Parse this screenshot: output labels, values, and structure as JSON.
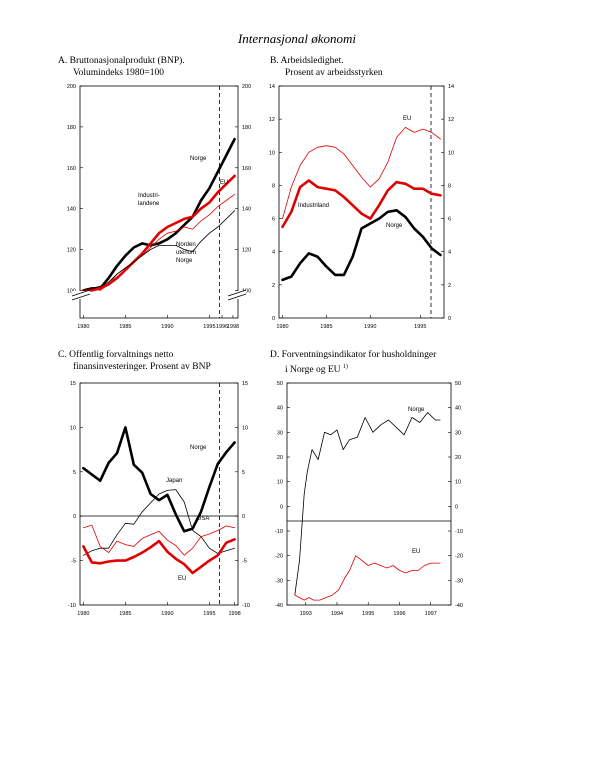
{
  "page": {
    "title": "Internasjonal økonomi"
  },
  "chart_data": [
    {
      "id": "A",
      "type": "line",
      "title_line1": "A.  Bruttonasjonalprodukt (BNP).",
      "title_line2": "Volumindeks 1980=100",
      "x_ticks": [
        "1980",
        "1985",
        "1990",
        "1995",
        "1996",
        "1998"
      ],
      "y_ticks": [
        "100",
        "120",
        "140",
        "160",
        "180",
        "200"
      ],
      "ylim": [
        100,
        200
      ],
      "forecast_from": 1996,
      "series": [
        {
          "name": "Norge",
          "color": "#000000",
          "width": 2.6,
          "x": [
            1980,
            1981,
            1982,
            1983,
            1984,
            1985,
            1986,
            1987,
            1988,
            1989,
            1990,
            1991,
            1992,
            1993,
            1994,
            1995,
            1996,
            1997,
            1998
          ],
          "y": [
            100,
            101,
            101,
            106,
            112,
            117,
            121,
            123,
            122,
            123,
            125,
            128,
            132,
            136,
            144,
            150,
            158,
            166,
            174
          ]
        },
        {
          "name": "EU",
          "color": "#e00000",
          "width": 2.6,
          "x": [
            1980,
            1981,
            1982,
            1983,
            1984,
            1985,
            1986,
            1987,
            1988,
            1989,
            1990,
            1991,
            1992,
            1993,
            1994,
            1995,
            1996,
            1997,
            1998
          ],
          "y": [
            100,
            100,
            101,
            103,
            106,
            110,
            114,
            118,
            123,
            128,
            131,
            133,
            135,
            136,
            140,
            143,
            148,
            152,
            156
          ]
        },
        {
          "name": "Industri-landene",
          "color": "#e00000",
          "width": 0.8,
          "x": [
            1980,
            1981,
            1982,
            1983,
            1984,
            1985,
            1986,
            1987,
            1988,
            1989,
            1990,
            1991,
            1992,
            1993,
            1994,
            1995,
            1996,
            1997,
            1998
          ],
          "y": [
            100,
            101,
            100,
            103,
            108,
            111,
            114,
            117,
            121,
            125,
            128,
            129,
            131,
            130,
            134,
            137,
            141,
            144,
            147
          ]
        },
        {
          "name": "Norden utenom Norge",
          "color": "#000000",
          "width": 0.8,
          "x": [
            1980,
            1981,
            1982,
            1983,
            1984,
            1985,
            1986,
            1987,
            1988,
            1989,
            1990,
            1991,
            1992,
            1993,
            1994,
            1995,
            1996,
            1997,
            1998
          ],
          "y": [
            100,
            101,
            102,
            104,
            108,
            111,
            114,
            117,
            120,
            122,
            122,
            122,
            120,
            119,
            124,
            128,
            131,
            135,
            139
          ]
        }
      ],
      "labels": {
        "Norge": "Norge",
        "EU": "EU",
        "Industri1": "Industri-",
        "Industri2": "landene",
        "Norden1": "Norden",
        "Norden2": "utenom",
        "Norden3": "Norge"
      }
    },
    {
      "id": "B",
      "type": "line",
      "title_line1": "B.  Arbeidsledighet.",
      "title_line2": "Prosent av arbeidsstyrken",
      "x_ticks": [
        "1980",
        "1985",
        "1990",
        "1995"
      ],
      "y_ticks": [
        "0",
        "2",
        "4",
        "6",
        "8",
        "10",
        "12",
        "14"
      ],
      "ylim": [
        0,
        14
      ],
      "forecast_from": 1996,
      "series": [
        {
          "name": "EU",
          "color": "#e00000",
          "width": 0.8,
          "x": [
            1980,
            1981,
            1982,
            1983,
            1984,
            1985,
            1986,
            1987,
            1988,
            1989,
            1990,
            1991,
            1992,
            1993,
            1994,
            1995,
            1996,
            1997,
            1998
          ],
          "y": [
            6.0,
            7.9,
            9.2,
            10.0,
            10.3,
            10.4,
            10.3,
            9.9,
            9.2,
            8.5,
            7.9,
            8.4,
            9.4,
            10.9,
            11.5,
            11.2,
            11.4,
            11.2,
            10.8
          ]
        },
        {
          "name": "Industriland",
          "color": "#e00000",
          "width": 2.6,
          "x": [
            1980,
            1981,
            1982,
            1983,
            1984,
            1985,
            1986,
            1987,
            1988,
            1989,
            1990,
            1991,
            1992,
            1993,
            1994,
            1995,
            1996,
            1997,
            1998
          ],
          "y": [
            5.5,
            6.4,
            7.9,
            8.3,
            7.9,
            7.8,
            7.7,
            7.3,
            6.8,
            6.3,
            6.0,
            6.8,
            7.7,
            8.2,
            8.1,
            7.8,
            7.8,
            7.5,
            7.4
          ]
        },
        {
          "name": "Norge",
          "color": "#000000",
          "width": 2.6,
          "x": [
            1980,
            1981,
            1982,
            1983,
            1984,
            1985,
            1986,
            1987,
            1988,
            1989,
            1990,
            1991,
            1992,
            1993,
            1994,
            1995,
            1996,
            1997,
            1998
          ],
          "y": [
            2.3,
            2.5,
            3.3,
            3.9,
            3.7,
            3.1,
            2.6,
            2.6,
            3.7,
            5.4,
            5.7,
            6.0,
            6.4,
            6.5,
            6.1,
            5.4,
            4.9,
            4.2,
            3.8
          ]
        }
      ],
      "labels": {
        "EU": "EU",
        "Industriland": "Industriland",
        "Norge": "Norge"
      }
    },
    {
      "id": "C",
      "type": "line",
      "title_line1": "C.  Offentlig forvaltnings netto",
      "title_line2": "finansinvesteringer. Prosent av BNP",
      "x_ticks": [
        "1980",
        "1985",
        "1990",
        "1995",
        "1998"
      ],
      "y_ticks": [
        "-10",
        "-5",
        "0",
        "5",
        "10",
        "15"
      ],
      "ylim": [
        -10,
        15
      ],
      "forecast_from": 1996,
      "series": [
        {
          "name": "Norge",
          "color": "#000000",
          "width": 2.6,
          "x": [
            1980,
            1981,
            1982,
            1983,
            1984,
            1985,
            1986,
            1987,
            1988,
            1989,
            1990,
            1991,
            1992,
            1993,
            1994,
            1995,
            1996,
            1997,
            1998
          ],
          "y": [
            5.4,
            4.7,
            4.0,
            6.0,
            7.1,
            10.0,
            5.8,
            4.9,
            2.5,
            1.8,
            2.4,
            0.2,
            -1.7,
            -1.4,
            0.5,
            3.3,
            5.9,
            7.2,
            8.3
          ]
        },
        {
          "name": "Japan",
          "color": "#000000",
          "width": 0.8,
          "x": [
            1980,
            1981,
            1982,
            1983,
            1984,
            1985,
            1986,
            1987,
            1988,
            1989,
            1990,
            1991,
            1992,
            1993,
            1994,
            1995,
            1996,
            1997,
            1998
          ],
          "y": [
            -4.4,
            -3.9,
            -3.6,
            -3.6,
            -2.1,
            -0.8,
            -0.9,
            0.5,
            1.5,
            2.5,
            2.9,
            3.0,
            1.6,
            -1.6,
            -2.3,
            -3.6,
            -4.2,
            -3.9,
            -3.6
          ]
        },
        {
          "name": "USA",
          "color": "#e00000",
          "width": 0.8,
          "x": [
            1980,
            1981,
            1982,
            1983,
            1984,
            1985,
            1986,
            1987,
            1988,
            1989,
            1990,
            1991,
            1992,
            1993,
            1994,
            1995,
            1996,
            1997,
            1998
          ],
          "y": [
            -1.3,
            -1.0,
            -3.4,
            -4.1,
            -2.8,
            -3.2,
            -3.4,
            -2.5,
            -2.1,
            -1.7,
            -2.7,
            -3.3,
            -4.4,
            -3.6,
            -2.3,
            -2.0,
            -1.6,
            -1.1,
            -1.3
          ]
        },
        {
          "name": "EU",
          "color": "#e00000",
          "width": 2.6,
          "x": [
            1980,
            1981,
            1982,
            1983,
            1984,
            1985,
            1986,
            1987,
            1988,
            1989,
            1990,
            1991,
            1992,
            1993,
            1994,
            1995,
            1996,
            1997,
            1998
          ],
          "y": [
            -3.4,
            -5.2,
            -5.3,
            -5.1,
            -5.0,
            -5.0,
            -4.6,
            -4.1,
            -3.5,
            -2.8,
            -4.0,
            -4.8,
            -5.4,
            -6.4,
            -5.7,
            -5.0,
            -4.4,
            -3.0,
            -2.6
          ]
        }
      ],
      "labels": {
        "Norge": "Norge",
        "Japan": "Japan",
        "USA": "USA",
        "EU": "EU"
      }
    },
    {
      "id": "D",
      "type": "line",
      "title_line1": "D.  Forventningsindikator for husholdninger",
      "title_line2": "i  Norge og EU",
      "title_sup": "1)",
      "x_ticks": [
        "1993",
        "1994",
        "1995",
        "1996",
        "1997"
      ],
      "y_ticks": [
        "-40",
        "-30",
        "-20",
        "-10",
        "0",
        "10",
        "20",
        "30",
        "40",
        "50"
      ],
      "ylim": [
        -40,
        50
      ],
      "series": [
        {
          "name": "Norge",
          "color": "#000000",
          "width": 0.8,
          "x": [
            1992.6,
            1992.75,
            1992.9,
            1993.0,
            1993.15,
            1993.35,
            1993.55,
            1993.75,
            1993.95,
            1994.15,
            1994.35,
            1994.6,
            1994.85,
            1995.1,
            1995.35,
            1995.6,
            1995.85,
            1996.1,
            1996.35,
            1996.6,
            1996.85,
            1997.1,
            1997.25
          ],
          "y": [
            -36,
            -22,
            5,
            14,
            23,
            19,
            30,
            29,
            31,
            23,
            27,
            28,
            36,
            30,
            33,
            35,
            32,
            29,
            36,
            34,
            38,
            35,
            35
          ]
        },
        {
          "name": "EU",
          "color": "#e00000",
          "width": 0.8,
          "x": [
            1992.6,
            1992.75,
            1992.9,
            1993.05,
            1993.2,
            1993.4,
            1993.6,
            1993.8,
            1994.0,
            1994.2,
            1994.35,
            1994.55,
            1994.75,
            1994.95,
            1995.15,
            1995.35,
            1995.55,
            1995.75,
            1995.95,
            1996.15,
            1996.35,
            1996.55,
            1996.75,
            1996.95,
            1997.1,
            1997.25
          ],
          "y": [
            -36,
            -37,
            -38,
            -37,
            -38,
            -38,
            -37,
            -36,
            -34,
            -29,
            -26,
            -20,
            -22,
            -24,
            -23,
            -24,
            -25,
            -24,
            -26,
            -27,
            -26,
            -26,
            -24,
            -23,
            -23,
            -23
          ]
        }
      ],
      "labels": {
        "Norge": "Norge",
        "EU": "EU"
      }
    }
  ]
}
